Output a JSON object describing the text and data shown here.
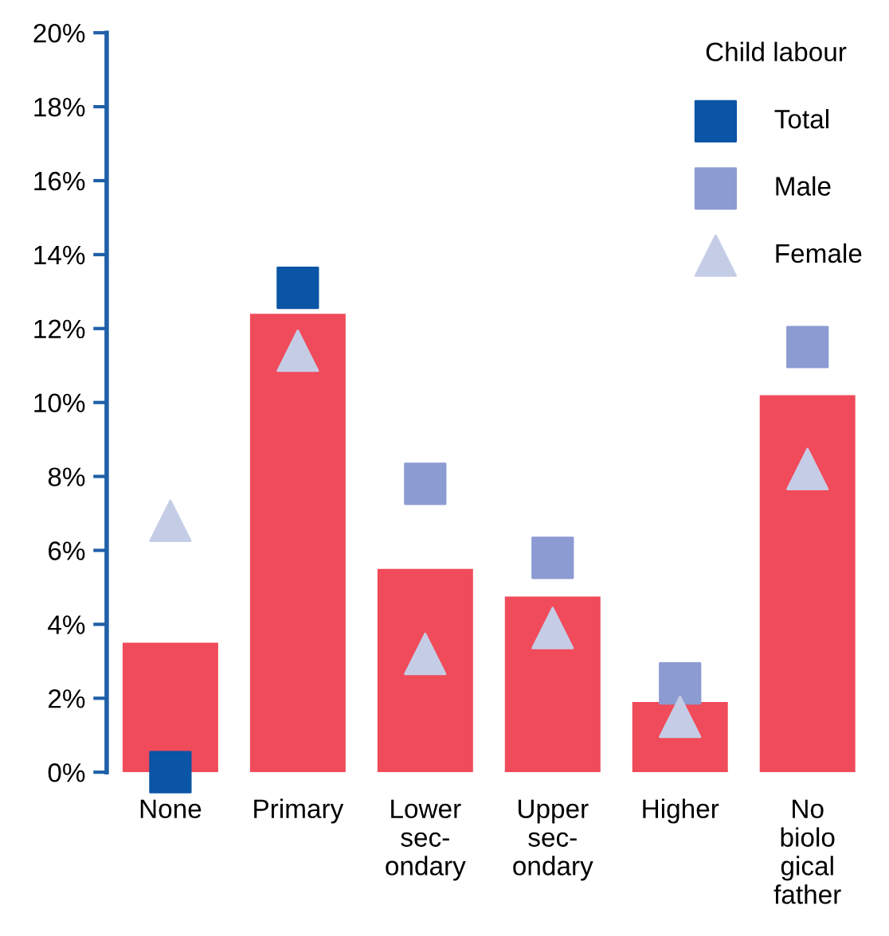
{
  "chart_data": {
    "type": "bar",
    "categories": [
      "None",
      "Primary",
      "Lower\nsec-\nondary",
      "Upper\nsec-\nondary",
      "Higher",
      "No\nbiolo\ngical\nfather"
    ],
    "series": [
      {
        "color": "#f04b5a",
        "values": [
          3.5,
          12.4,
          5.5,
          4.75,
          1.9,
          10.2
        ]
      },
      {
        "type": "scatter",
        "name": "Total",
        "marker": "square",
        "color": "#0a55a5",
        "values": [
          0,
          13.1,
          null,
          null,
          null,
          null
        ]
      },
      {
        "type": "scatter",
        "name": "Male",
        "marker": "square",
        "color": "#8c9bd2",
        "values": [
          null,
          null,
          7.8,
          5.8,
          2.4,
          11.5
        ]
      },
      {
        "type": "scatter",
        "name": "Female",
        "marker": "triangle",
        "color": "#c5cde6",
        "values": [
          6.8,
          11.4,
          3.2,
          3.9,
          1.5,
          8.2
        ]
      }
    ],
    "ylim": [
      0,
      20
    ],
    "yticks": [
      {
        "value": 0,
        "label": "0%"
      },
      {
        "value": 2,
        "label": "2%"
      },
      {
        "value": 4,
        "label": "4%"
      },
      {
        "value": 6,
        "label": "6%"
      },
      {
        "value": 8,
        "label": "8%"
      },
      {
        "value": 10,
        "label": "10%"
      },
      {
        "value": 12,
        "label": "12%"
      },
      {
        "value": 14,
        "label": "14%"
      },
      {
        "value": 16,
        "label": "16%"
      },
      {
        "value": 18,
        "label": "18%"
      },
      {
        "value": 20,
        "label": "20%"
      }
    ],
    "legend": "top right",
    "legend_title": "Child labour",
    "grid": false
  }
}
